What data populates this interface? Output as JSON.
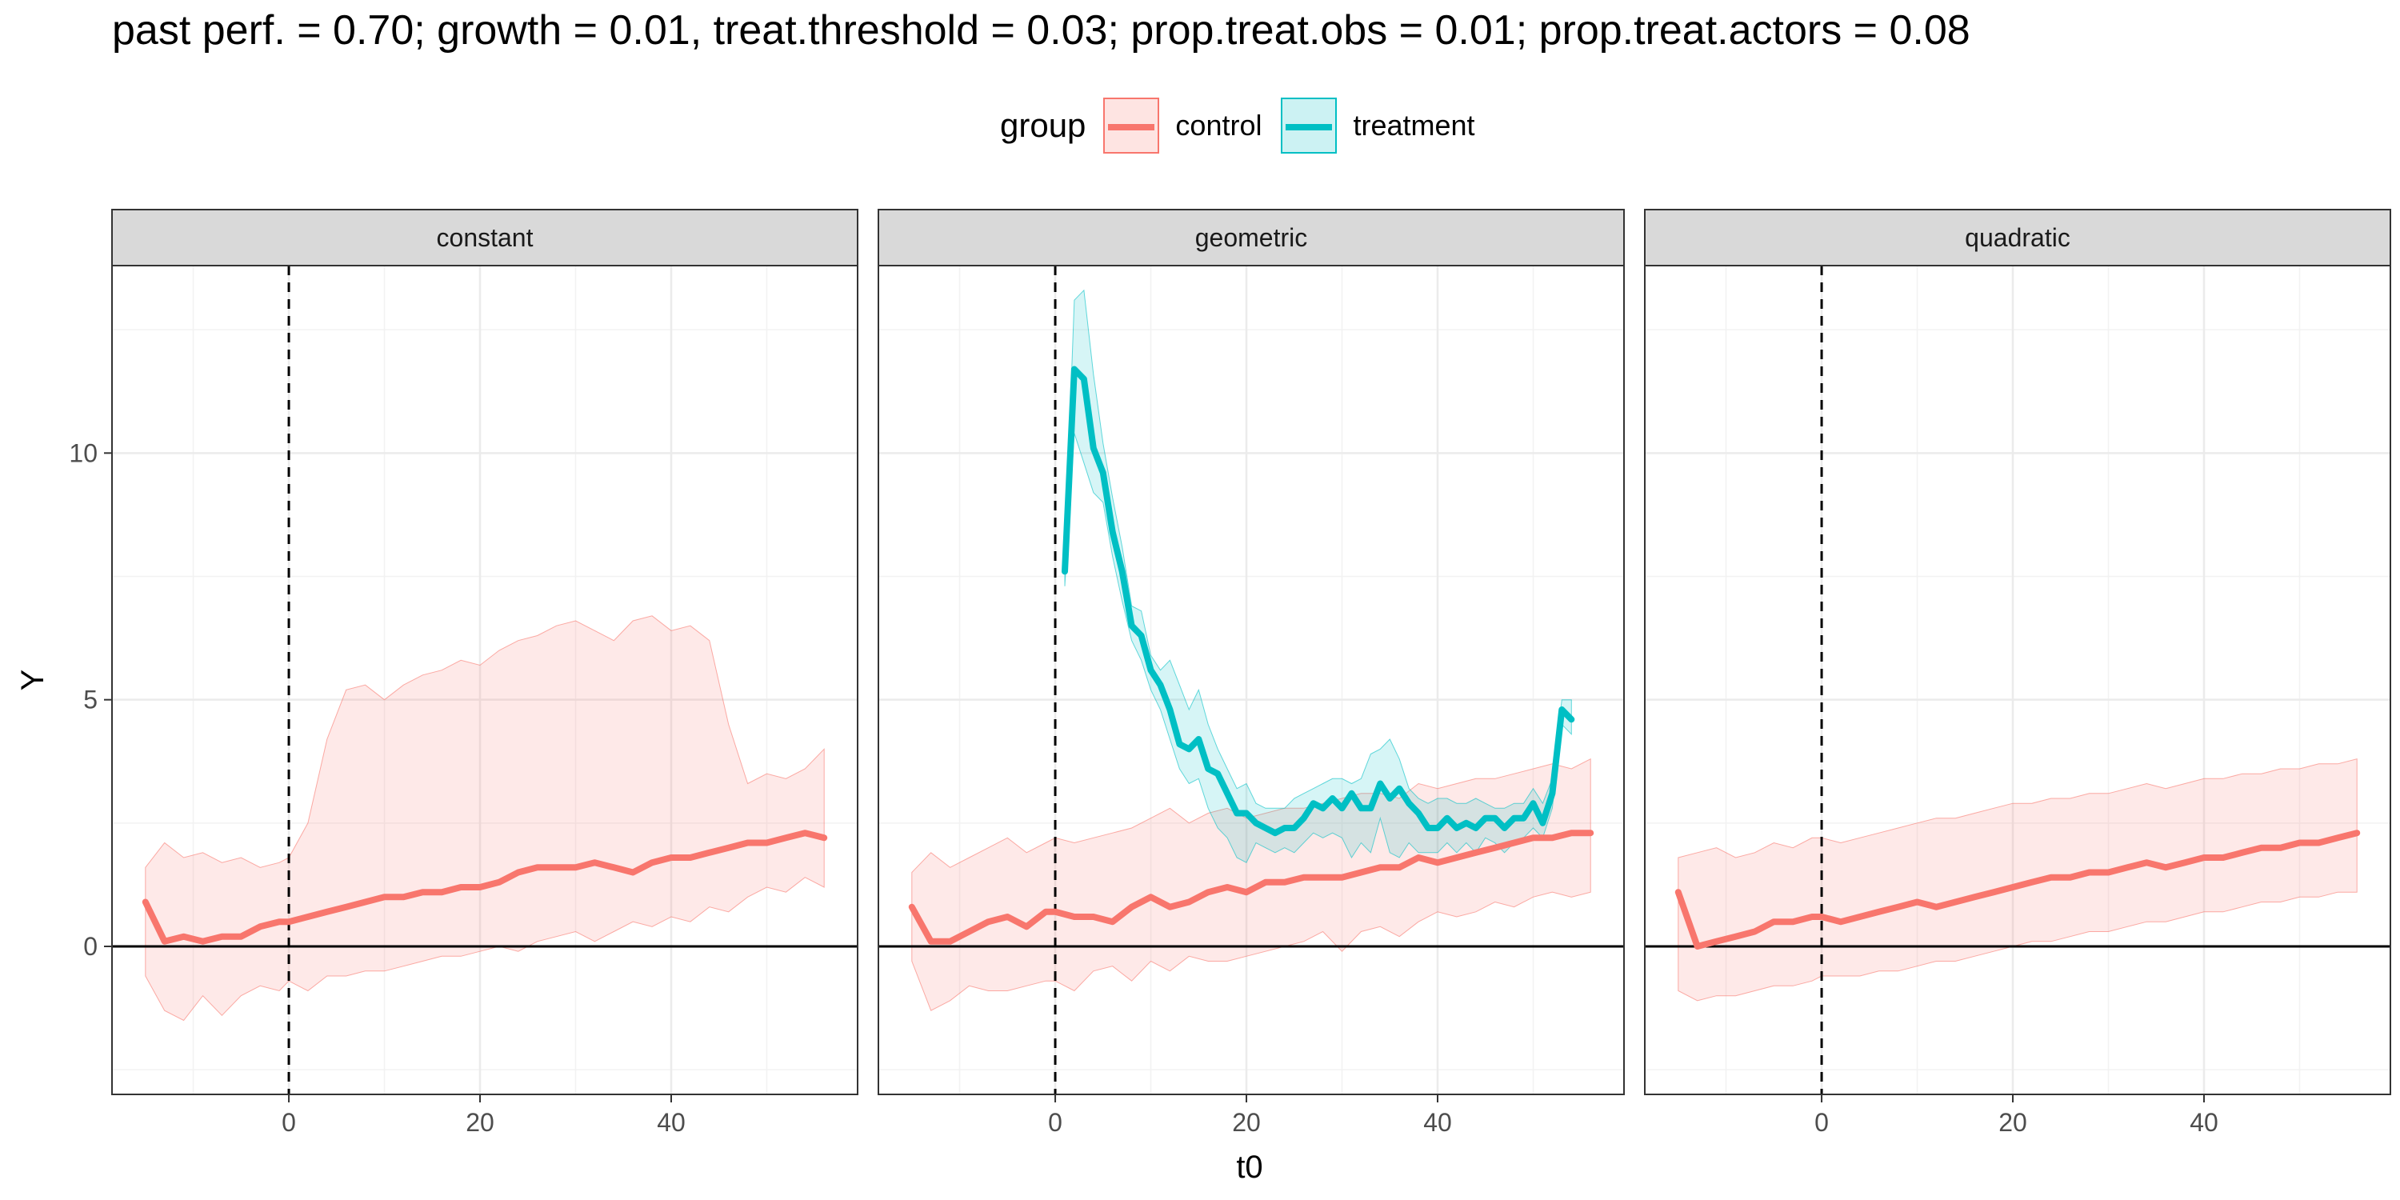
{
  "title": "past perf. = 0.70; growth = 0.01,  treat.threshold = 0.03;  prop.treat.obs = 0.01;  prop.treat.actors = 0.08",
  "legend": {
    "title": "group",
    "items": [
      {
        "label": "control",
        "color": "#F8766D"
      },
      {
        "label": "treatment",
        "color": "#00BFC4"
      }
    ]
  },
  "chart_data": {
    "type": "line",
    "xlabel": "t0",
    "ylabel": "Y",
    "xlim": [
      -18.5,
      59.5
    ],
    "ylim": [
      -3,
      13.8
    ],
    "xticks": [
      0,
      20,
      40
    ],
    "yticks": [
      0,
      5,
      10
    ],
    "legend_position": "top",
    "grid": true,
    "reference_lines": {
      "vertical_dashed_x": 0,
      "horizontal_y": 0
    },
    "panels": [
      {
        "label": "constant",
        "series": [
          {
            "name": "control",
            "color": "#F8766D",
            "x": [
              -15,
              -13,
              -11,
              -9,
              -7,
              -5,
              -3,
              -1,
              0,
              2,
              4,
              6,
              8,
              10,
              12,
              14,
              16,
              18,
              20,
              22,
              24,
              26,
              28,
              30,
              32,
              34,
              36,
              38,
              40,
              42,
              44,
              46,
              48,
              50,
              52,
              54,
              56
            ],
            "y": [
              0.9,
              0.1,
              0.2,
              0.1,
              0.2,
              0.2,
              0.4,
              0.5,
              0.5,
              0.6,
              0.7,
              0.8,
              0.9,
              1.0,
              1.0,
              1.1,
              1.1,
              1.2,
              1.2,
              1.3,
              1.5,
              1.6,
              1.6,
              1.6,
              1.7,
              1.6,
              1.5,
              1.7,
              1.8,
              1.8,
              1.9,
              2.0,
              2.1,
              2.1,
              2.2,
              2.3,
              2.2
            ],
            "upper": [
              1.6,
              2.1,
              1.8,
              1.9,
              1.7,
              1.8,
              1.6,
              1.7,
              1.8,
              2.5,
              4.2,
              5.2,
              5.3,
              5.0,
              5.3,
              5.5,
              5.6,
              5.8,
              5.7,
              6.0,
              6.2,
              6.3,
              6.5,
              6.6,
              6.4,
              6.2,
              6.6,
              6.7,
              6.4,
              6.5,
              6.2,
              4.5,
              3.3,
              3.5,
              3.4,
              3.6,
              4.0
            ],
            "lower": [
              -0.6,
              -1.3,
              -1.5,
              -1.0,
              -1.4,
              -1.0,
              -0.8,
              -0.9,
              -0.7,
              -0.9,
              -0.6,
              -0.6,
              -0.5,
              -0.5,
              -0.4,
              -0.3,
              -0.2,
              -0.2,
              -0.1,
              0.0,
              -0.1,
              0.1,
              0.2,
              0.3,
              0.1,
              0.3,
              0.5,
              0.4,
              0.6,
              0.5,
              0.8,
              0.7,
              1.0,
              1.2,
              1.1,
              1.4,
              1.2
            ]
          }
        ]
      },
      {
        "label": "geometric",
        "series": [
          {
            "name": "control",
            "color": "#F8766D",
            "x": [
              -15,
              -13,
              -11,
              -9,
              -7,
              -5,
              -3,
              -1,
              0,
              2,
              4,
              6,
              8,
              10,
              12,
              14,
              16,
              18,
              20,
              22,
              24,
              26,
              28,
              30,
              32,
              34,
              36,
              38,
              40,
              42,
              44,
              46,
              48,
              50,
              52,
              54,
              56
            ],
            "y": [
              0.8,
              0.1,
              0.1,
              0.3,
              0.5,
              0.6,
              0.4,
              0.7,
              0.7,
              0.6,
              0.6,
              0.5,
              0.8,
              1.0,
              0.8,
              0.9,
              1.1,
              1.2,
              1.1,
              1.3,
              1.3,
              1.4,
              1.4,
              1.4,
              1.5,
              1.6,
              1.6,
              1.8,
              1.7,
              1.8,
              1.9,
              2.0,
              2.1,
              2.2,
              2.2,
              2.3,
              2.3
            ],
            "upper": [
              1.5,
              1.9,
              1.6,
              1.8,
              2.0,
              2.2,
              1.9,
              2.1,
              2.2,
              2.1,
              2.2,
              2.3,
              2.4,
              2.6,
              2.8,
              2.5,
              2.7,
              2.8,
              2.6,
              2.7,
              2.8,
              2.8,
              2.9,
              3.0,
              3.1,
              3.1,
              3.0,
              3.3,
              3.2,
              3.3,
              3.4,
              3.4,
              3.5,
              3.6,
              3.7,
              3.6,
              3.8
            ],
            "lower": [
              -0.3,
              -1.3,
              -1.1,
              -0.8,
              -0.9,
              -0.9,
              -0.8,
              -0.7,
              -0.7,
              -0.9,
              -0.5,
              -0.4,
              -0.7,
              -0.3,
              -0.5,
              -0.2,
              -0.3,
              -0.3,
              -0.2,
              -0.1,
              0.0,
              0.1,
              0.3,
              -0.1,
              0.3,
              0.4,
              0.2,
              0.5,
              0.7,
              0.6,
              0.7,
              0.9,
              0.8,
              1.0,
              1.1,
              1.0,
              1.1
            ]
          },
          {
            "name": "treatment",
            "color": "#00BFC4",
            "x": [
              1,
              2,
              3,
              4,
              5,
              6,
              7,
              8,
              9,
              10,
              11,
              12,
              13,
              14,
              15,
              16,
              17,
              18,
              19,
              20,
              21,
              22,
              23,
              24,
              25,
              26,
              27,
              28,
              29,
              30,
              31,
              32,
              33,
              34,
              35,
              36,
              37,
              38,
              39,
              40,
              41,
              42,
              43,
              44,
              45,
              46,
              47,
              48,
              49,
              50,
              51,
              52,
              53,
              54
            ],
            "y": [
              7.6,
              11.7,
              11.5,
              10.1,
              9.6,
              8.4,
              7.6,
              6.5,
              6.3,
              5.6,
              5.3,
              4.8,
              4.1,
              4.0,
              4.2,
              3.6,
              3.5,
              3.1,
              2.7,
              2.7,
              2.5,
              2.4,
              2.3,
              2.4,
              2.4,
              2.6,
              2.9,
              2.8,
              3.0,
              2.8,
              3.1,
              2.8,
              2.8,
              3.3,
              3.0,
              3.2,
              2.9,
              2.7,
              2.4,
              2.4,
              2.6,
              2.4,
              2.5,
              2.4,
              2.6,
              2.6,
              2.4,
              2.6,
              2.6,
              2.9,
              2.5,
              3.1,
              4.8,
              4.6
            ],
            "upper": [
              7.9,
              13.1,
              13.3,
              11.6,
              10.2,
              9.1,
              8.1,
              6.9,
              6.8,
              5.9,
              5.6,
              5.8,
              5.3,
              4.8,
              5.2,
              4.5,
              4.0,
              3.6,
              3.2,
              3.3,
              2.9,
              2.8,
              2.8,
              2.8,
              3.0,
              3.1,
              3.2,
              3.3,
              3.4,
              3.4,
              3.3,
              3.4,
              3.9,
              4.0,
              4.2,
              3.8,
              3.2,
              3.0,
              2.9,
              3.0,
              3.0,
              2.9,
              2.9,
              3.0,
              2.9,
              2.8,
              2.8,
              2.9,
              2.9,
              3.2,
              2.9,
              3.4,
              5.0,
              5.0
            ],
            "lower": [
              7.3,
              10.4,
              9.8,
              9.2,
              9.0,
              7.9,
              7.0,
              6.2,
              5.8,
              5.2,
              4.8,
              4.2,
              3.6,
              3.3,
              3.4,
              2.8,
              2.4,
              2.2,
              1.8,
              1.7,
              2.1,
              2.0,
              1.9,
              2.0,
              1.9,
              2.1,
              2.3,
              2.2,
              2.3,
              2.2,
              1.8,
              2.1,
              1.9,
              2.6,
              1.9,
              1.8,
              2.1,
              1.9,
              1.9,
              1.9,
              2.1,
              1.9,
              2.1,
              1.9,
              2.2,
              2.1,
              1.9,
              2.1,
              2.2,
              2.4,
              2.2,
              2.8,
              4.5,
              4.3
            ]
          }
        ]
      },
      {
        "label": "quadratic",
        "series": [
          {
            "name": "control",
            "color": "#F8766D",
            "x": [
              -15,
              -13,
              -11,
              -9,
              -7,
              -5,
              -3,
              -1,
              0,
              2,
              4,
              6,
              8,
              10,
              12,
              14,
              16,
              18,
              20,
              22,
              24,
              26,
              28,
              30,
              32,
              34,
              36,
              38,
              40,
              42,
              44,
              46,
              48,
              50,
              52,
              54,
              56
            ],
            "y": [
              1.1,
              0.0,
              0.1,
              0.2,
              0.3,
              0.5,
              0.5,
              0.6,
              0.6,
              0.5,
              0.6,
              0.7,
              0.8,
              0.9,
              0.8,
              0.9,
              1.0,
              1.1,
              1.2,
              1.3,
              1.4,
              1.4,
              1.5,
              1.5,
              1.6,
              1.7,
              1.6,
              1.7,
              1.8,
              1.8,
              1.9,
              2.0,
              2.0,
              2.1,
              2.1,
              2.2,
              2.3
            ],
            "upper": [
              1.8,
              1.9,
              2.0,
              1.8,
              1.9,
              2.1,
              2.0,
              2.2,
              2.2,
              2.1,
              2.2,
              2.3,
              2.4,
              2.5,
              2.6,
              2.6,
              2.7,
              2.8,
              2.9,
              2.9,
              3.0,
              3.0,
              3.1,
              3.1,
              3.2,
              3.3,
              3.2,
              3.3,
              3.4,
              3.4,
              3.5,
              3.5,
              3.6,
              3.6,
              3.7,
              3.7,
              3.8
            ],
            "lower": [
              -0.9,
              -1.1,
              -1.0,
              -1.0,
              -0.9,
              -0.8,
              -0.8,
              -0.7,
              -0.6,
              -0.6,
              -0.6,
              -0.5,
              -0.5,
              -0.4,
              -0.3,
              -0.3,
              -0.2,
              -0.1,
              0.0,
              0.1,
              0.1,
              0.2,
              0.3,
              0.3,
              0.4,
              0.5,
              0.5,
              0.6,
              0.7,
              0.7,
              0.8,
              0.9,
              0.9,
              1.0,
              1.0,
              1.1,
              1.1
            ]
          }
        ]
      }
    ]
  }
}
